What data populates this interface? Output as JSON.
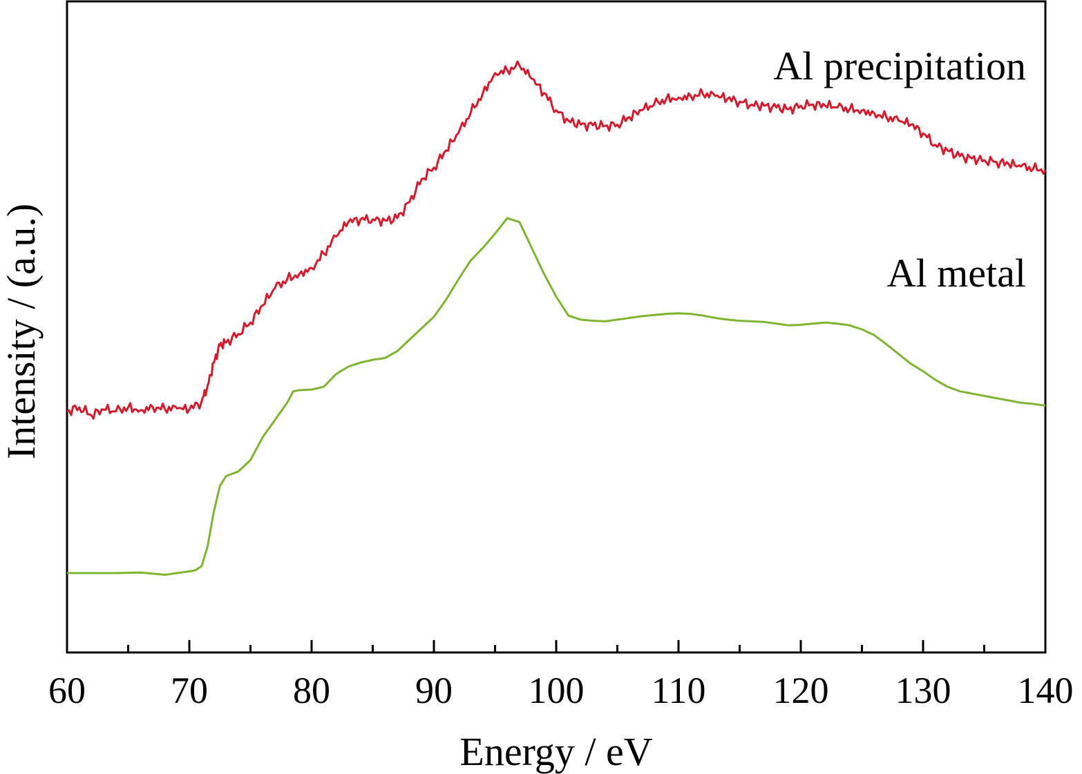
{
  "chart_data": {
    "type": "line",
    "title": "",
    "xlabel": "Energy / eV",
    "ylabel": "Intensity / (a.u.)",
    "xlim": [
      60,
      140
    ],
    "ylim": [
      0,
      1
    ],
    "x_ticks": [
      60,
      70,
      80,
      90,
      100,
      110,
      120,
      130,
      140
    ],
    "x_minor_step": 5,
    "y_tick_labels": false,
    "grid": false,
    "legend": "none",
    "series": [
      {
        "name": "Al precipitation",
        "color": "#d7192b",
        "label_position": "upper-right",
        "x": [
          60,
          61,
          62,
          63,
          64,
          65,
          66,
          67,
          68,
          69,
          70,
          71,
          71.5,
          72,
          72.5,
          73,
          74,
          75,
          76,
          77,
          78,
          79,
          80,
          81,
          82,
          83,
          84,
          85,
          86,
          87,
          88,
          89,
          90,
          91,
          92,
          93,
          94,
          95,
          96,
          97,
          98,
          99,
          100,
          101,
          102,
          103,
          104,
          105,
          106,
          107,
          108,
          109,
          110,
          111,
          112,
          113,
          114,
          115,
          116,
          117,
          118,
          119,
          120,
          121,
          122,
          123,
          124,
          125,
          126,
          127,
          128,
          129,
          130,
          131,
          132,
          133,
          134,
          135,
          136,
          137,
          138,
          139,
          140
        ],
        "values": [
          0.405,
          0.412,
          0.398,
          0.408,
          0.405,
          0.412,
          0.407,
          0.413,
          0.409,
          0.41,
          0.408,
          0.422,
          0.45,
          0.49,
          0.52,
          0.525,
          0.54,
          0.56,
          0.59,
          0.62,
          0.635,
          0.645,
          0.655,
          0.68,
          0.71,
          0.735,
          0.74,
          0.74,
          0.738,
          0.742,
          0.77,
          0.81,
          0.83,
          0.86,
          0.89,
          0.925,
          0.96,
          0.995,
          1.0,
          1.008,
          0.985,
          0.96,
          0.93,
          0.912,
          0.905,
          0.904,
          0.903,
          0.905,
          0.918,
          0.93,
          0.94,
          0.95,
          0.952,
          0.955,
          0.958,
          0.955,
          0.95,
          0.945,
          0.94,
          0.938,
          0.935,
          0.932,
          0.938,
          0.94,
          0.938,
          0.935,
          0.932,
          0.93,
          0.925,
          0.918,
          0.912,
          0.905,
          0.89,
          0.87,
          0.86,
          0.85,
          0.846,
          0.843,
          0.84,
          0.836,
          0.832,
          0.828,
          0.826
        ]
      },
      {
        "name": "Al metal",
        "color": "#7db52e",
        "label_position": "right",
        "x": [
          60,
          62,
          64,
          66,
          68,
          70,
          70.5,
          71,
          71.5,
          72,
          72.5,
          73,
          74,
          75,
          76,
          77,
          78,
          78.5,
          79,
          80,
          81,
          82,
          83,
          84,
          85,
          86,
          87,
          88,
          89,
          90,
          91,
          92,
          93,
          94,
          95,
          96,
          97,
          98,
          99,
          100,
          101,
          102,
          103,
          104,
          105,
          106,
          107,
          108,
          109,
          110,
          111,
          112,
          113,
          114,
          115,
          116,
          117,
          118,
          119,
          120,
          121,
          122,
          123,
          124,
          125,
          126,
          127,
          128,
          129,
          130,
          131,
          132,
          133,
          134,
          135,
          136,
          137,
          138,
          139,
          140
        ],
        "values": [
          0.123,
          0.123,
          0.123,
          0.124,
          0.12,
          0.126,
          0.128,
          0.135,
          0.17,
          0.23,
          0.275,
          0.292,
          0.3,
          0.32,
          0.36,
          0.39,
          0.42,
          0.44,
          0.442,
          0.443,
          0.448,
          0.47,
          0.483,
          0.49,
          0.495,
          0.498,
          0.51,
          0.53,
          0.55,
          0.57,
          0.6,
          0.635,
          0.668,
          0.69,
          0.715,
          0.742,
          0.735,
          0.69,
          0.645,
          0.605,
          0.572,
          0.565,
          0.563,
          0.562,
          0.565,
          0.568,
          0.571,
          0.573,
          0.575,
          0.576,
          0.575,
          0.572,
          0.568,
          0.565,
          0.563,
          0.562,
          0.561,
          0.558,
          0.555,
          0.556,
          0.558,
          0.56,
          0.558,
          0.555,
          0.548,
          0.538,
          0.522,
          0.505,
          0.488,
          0.475,
          0.46,
          0.448,
          0.44,
          0.436,
          0.432,
          0.428,
          0.424,
          0.42,
          0.418,
          0.415
        ]
      }
    ]
  }
}
